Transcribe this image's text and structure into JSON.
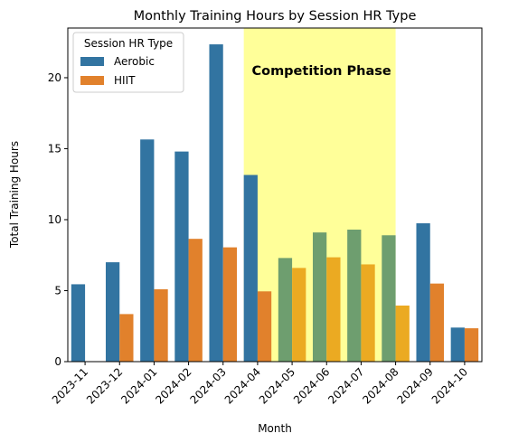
{
  "chart_data": {
    "type": "bar",
    "title": "Monthly Training Hours by Session HR Type",
    "xlabel": "Month",
    "ylabel": "Total Training Hours",
    "ylim": [
      0,
      23.5
    ],
    "yticks": [
      0,
      5,
      10,
      15,
      20
    ],
    "categories": [
      "2023-11",
      "2023-12",
      "2024-01",
      "2024-02",
      "2024-03",
      "2024-04",
      "2024-05",
      "2024-06",
      "2024-07",
      "2024-08",
      "2024-09",
      "2024-10"
    ],
    "series": [
      {
        "name": "Aerobic",
        "color": "#3274a1",
        "phase_color": "#6e9e6f",
        "values": [
          5.45,
          7.0,
          15.65,
          14.8,
          22.35,
          13.15,
          7.3,
          9.1,
          9.3,
          8.9,
          9.75,
          2.4
        ]
      },
      {
        "name": "HIIT",
        "color": "#e1812c",
        "phase_color": "#ebaa22",
        "values": [
          0,
          3.35,
          5.1,
          8.65,
          8.05,
          4.95,
          6.6,
          7.35,
          6.85,
          3.95,
          5.5,
          2.35
        ]
      }
    ],
    "legend": {
      "title": "Session HR Type",
      "placement": "upper-left"
    },
    "highlight": {
      "label": "Competition Phase",
      "color": "#ffff99",
      "x_start": "2024-04",
      "x_end": "2024-08"
    },
    "grid": false
  }
}
